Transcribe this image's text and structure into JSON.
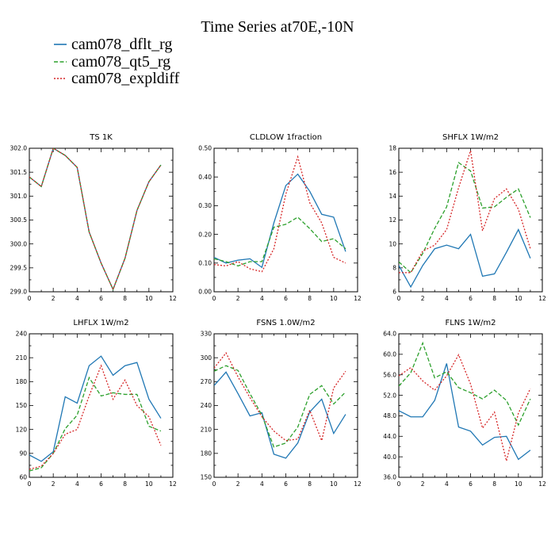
{
  "figure": {
    "title": "Time Series at70E,-10N"
  },
  "series_styles": [
    {
      "name": "cam078_dflt_rg",
      "color": "#1f77b4",
      "dash": "solid"
    },
    {
      "name": "cam078_qt5_rg",
      "color": "#2ca02c",
      "dash": "dashed"
    },
    {
      "name": "cam078_expldiff",
      "color": "#d62728",
      "dash": "dotted"
    }
  ],
  "chart_data": [
    {
      "type": "line",
      "title": "TS   1K",
      "x": [
        0,
        1,
        2,
        3,
        4,
        5,
        6,
        7,
        8,
        9,
        10,
        11
      ],
      "xlim": [
        0,
        12
      ],
      "xticks": [
        0,
        2,
        4,
        6,
        8,
        10,
        12
      ],
      "ylim": [
        299.0,
        302.0
      ],
      "yticks": [
        299.0,
        299.5,
        300.0,
        300.5,
        301.0,
        301.5,
        302.0
      ],
      "ytick_decimals": 1,
      "series": [
        {
          "values": [
            301.4,
            301.2,
            302.0,
            301.85,
            301.6,
            300.25,
            299.6,
            299.05,
            299.7,
            300.7,
            301.3,
            301.65
          ]
        },
        {
          "values": [
            301.4,
            301.2,
            302.0,
            301.85,
            301.6,
            300.25,
            299.6,
            299.05,
            299.7,
            300.7,
            301.3,
            301.65
          ]
        },
        {
          "values": [
            301.4,
            301.2,
            302.0,
            301.85,
            301.6,
            300.25,
            299.6,
            299.05,
            299.7,
            300.7,
            301.3,
            301.65
          ]
        }
      ]
    },
    {
      "type": "line",
      "title": "CLDLOW   1fraction",
      "x": [
        0,
        1,
        2,
        3,
        4,
        5,
        6,
        7,
        8,
        9,
        10,
        11
      ],
      "xlim": [
        0,
        12
      ],
      "xticks": [
        0,
        2,
        4,
        6,
        8,
        10,
        12
      ],
      "ylim": [
        0.0,
        0.5
      ],
      "yticks": [
        0.0,
        0.1,
        0.2,
        0.3,
        0.4,
        0.5
      ],
      "ytick_decimals": 2,
      "series": [
        {
          "values": [
            0.12,
            0.1,
            0.11,
            0.115,
            0.085,
            0.24,
            0.37,
            0.41,
            0.35,
            0.27,
            0.26,
            0.14
          ]
        },
        {
          "values": [
            0.115,
            0.105,
            0.09,
            0.105,
            0.105,
            0.225,
            0.235,
            0.26,
            0.22,
            0.175,
            0.185,
            0.15
          ]
        },
        {
          "values": [
            0.095,
            0.09,
            0.105,
            0.08,
            0.07,
            0.15,
            0.34,
            0.47,
            0.31,
            0.24,
            0.12,
            0.1
          ]
        }
      ]
    },
    {
      "type": "line",
      "title": "SHFLX   1W/m2",
      "x": [
        0,
        1,
        2,
        3,
        4,
        5,
        6,
        7,
        8,
        9,
        10,
        11
      ],
      "xlim": [
        0,
        12
      ],
      "xticks": [
        0,
        2,
        4,
        6,
        8,
        10,
        12
      ],
      "ylim": [
        6,
        18
      ],
      "yticks": [
        6,
        8,
        10,
        12,
        14,
        16,
        18
      ],
      "ytick_decimals": 0,
      "series": [
        {
          "values": [
            8.2,
            6.4,
            8.2,
            9.6,
            9.9,
            9.6,
            10.8,
            7.3,
            7.5,
            9.3,
            11.2,
            8.8
          ]
        },
        {
          "values": [
            8.5,
            7.6,
            9.2,
            11.3,
            13.1,
            16.8,
            16.1,
            13.0,
            13.1,
            13.9,
            14.6,
            12.2
          ]
        },
        {
          "values": [
            7.6,
            7.6,
            9.4,
            9.9,
            11.2,
            14.7,
            17.8,
            11.1,
            13.8,
            14.6,
            12.9,
            9.6
          ]
        }
      ]
    },
    {
      "type": "line",
      "title": "LHFLX   1W/m2",
      "x": [
        0,
        1,
        2,
        3,
        4,
        5,
        6,
        7,
        8,
        9,
        10,
        11
      ],
      "xlim": [
        0,
        12
      ],
      "xticks": [
        0,
        2,
        4,
        6,
        8,
        10,
        12
      ],
      "ylim": [
        60,
        240
      ],
      "yticks": [
        60,
        90,
        120,
        150,
        180,
        210,
        240
      ],
      "ytick_decimals": 0,
      "series": [
        {
          "values": [
            88,
            80,
            92,
            161,
            153,
            200,
            212,
            188,
            200,
            204,
            158,
            134
          ]
        },
        {
          "values": [
            68,
            72,
            90,
            121,
            138,
            185,
            162,
            166,
            164,
            164,
            124,
            118
          ]
        },
        {
          "values": [
            70,
            74,
            90,
            114,
            120,
            162,
            200,
            158,
            182,
            150,
            136,
            100
          ]
        }
      ]
    },
    {
      "type": "line",
      "title": "FSNS   1.0W/m2",
      "x": [
        0,
        1,
        2,
        3,
        4,
        5,
        6,
        7,
        8,
        9,
        10,
        11
      ],
      "xlim": [
        0,
        12
      ],
      "xticks": [
        0,
        2,
        4,
        6,
        8,
        10,
        12
      ],
      "ylim": [
        150,
        330
      ],
      "yticks": [
        150,
        180,
        210,
        240,
        270,
        300,
        330
      ],
      "ytick_decimals": 0,
      "series": [
        {
          "values": [
            265,
            282,
            255,
            227,
            231,
            179,
            174,
            193,
            232,
            248,
            205,
            229
          ]
        },
        {
          "values": [
            283,
            290,
            284,
            255,
            228,
            188,
            193,
            213,
            254,
            265,
            242,
            257
          ]
        },
        {
          "values": [
            287,
            306,
            276,
            250,
            226,
            208,
            196,
            198,
            234,
            196,
            262,
            283
          ]
        }
      ]
    },
    {
      "type": "line",
      "title": "FLNS   1W/m2",
      "x": [
        0,
        1,
        2,
        3,
        4,
        5,
        6,
        7,
        8,
        9,
        10,
        11
      ],
      "xlim": [
        0,
        12
      ],
      "xticks": [
        0,
        2,
        4,
        6,
        8,
        10,
        12
      ],
      "ylim": [
        36.0,
        64.0
      ],
      "yticks": [
        36.0,
        40.0,
        44.0,
        48.0,
        52.0,
        56.0,
        60.0,
        64.0
      ],
      "ytick_decimals": 1,
      "series": [
        {
          "values": [
            49.0,
            47.8,
            47.8,
            51.0,
            58.2,
            45.8,
            45.0,
            42.3,
            43.8,
            44.0,
            39.5,
            41.3
          ]
        },
        {
          "values": [
            53.8,
            56.4,
            62.2,
            55.4,
            56.6,
            53.5,
            52.5,
            51.3,
            53.0,
            51.0,
            46.2,
            51.3
          ]
        },
        {
          "values": [
            55.8,
            57.4,
            54.8,
            53.0,
            55.8,
            59.9,
            54.2,
            45.6,
            48.7,
            39.2,
            48.5,
            53.3
          ]
        }
      ]
    }
  ]
}
